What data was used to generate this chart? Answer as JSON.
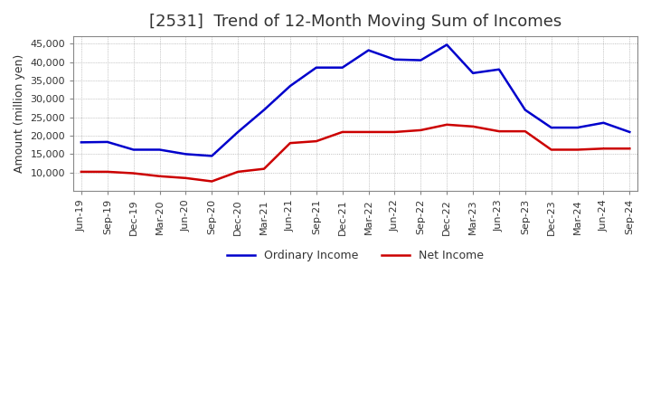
{
  "title": "[2531]  Trend of 12-Month Moving Sum of Incomes",
  "ylabel": "Amount (million yen)",
  "background_color": "#ffffff",
  "plot_bg_color": "#ffffff",
  "grid_color": "#aaaaaa",
  "x_labels": [
    "Jun-19",
    "Sep-19",
    "Dec-19",
    "Mar-20",
    "Jun-20",
    "Sep-20",
    "Dec-20",
    "Mar-21",
    "Jun-21",
    "Sep-21",
    "Dec-21",
    "Mar-22",
    "Jun-22",
    "Sep-22",
    "Dec-22",
    "Mar-23",
    "Jun-23",
    "Sep-23",
    "Dec-23",
    "Mar-24",
    "Jun-24",
    "Sep-24"
  ],
  "ordinary_income": [
    18200,
    18300,
    16200,
    16200,
    15000,
    14500,
    21000,
    27000,
    33500,
    38500,
    38500,
    43200,
    40700,
    40500,
    44700,
    37000,
    38000,
    27000,
    22200,
    22200,
    23500,
    21000
  ],
  "net_income": [
    10200,
    10200,
    9800,
    9000,
    8500,
    7600,
    10200,
    11000,
    18000,
    18500,
    21000,
    21000,
    21000,
    21500,
    23000,
    22500,
    21200,
    21200,
    16200,
    16200,
    16500,
    16500
  ],
  "ordinary_income_color": "#0000cc",
  "net_income_color": "#cc0000",
  "ylim": [
    5000,
    47000
  ],
  "yticks": [
    10000,
    15000,
    20000,
    25000,
    30000,
    35000,
    40000,
    45000
  ],
  "legend_labels": [
    "Ordinary Income",
    "Net Income"
  ],
  "title_fontsize": 13,
  "ylabel_fontsize": 9,
  "tick_fontsize": 8
}
